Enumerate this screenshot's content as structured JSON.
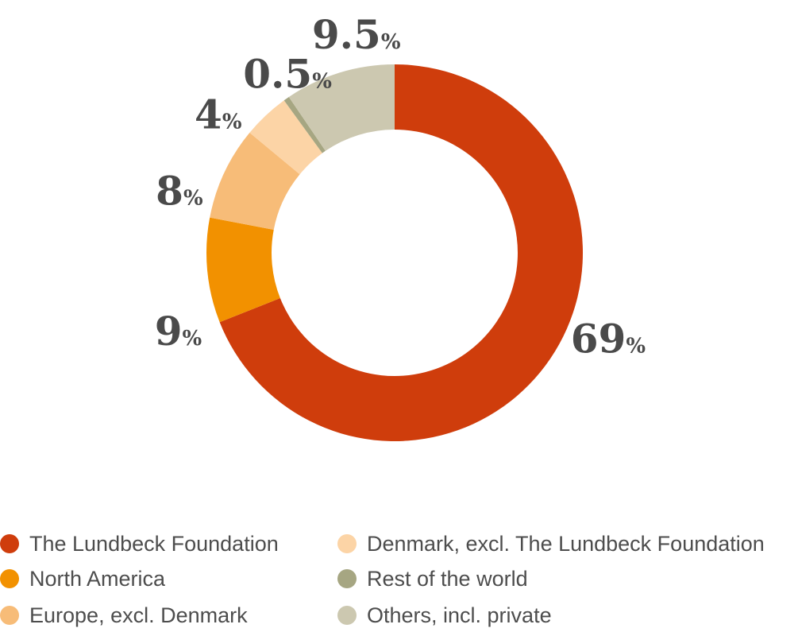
{
  "chart_data": {
    "type": "pie",
    "variant": "donut",
    "title": "",
    "categories": [
      "The Lundbeck Foundation",
      "North America",
      "Europe, excl. Denmark",
      "Denmark, excl. The Lundbeck Foundation",
      "Rest of the world",
      "Others, incl. private"
    ],
    "values": [
      69,
      9,
      8,
      4,
      0.5,
      9.5
    ],
    "value_labels": [
      "69",
      "9",
      "8",
      "4",
      "0.5",
      "9.5"
    ],
    "value_suffix": "%",
    "colors": [
      "#CF3D0C",
      "#F29100",
      "#F7BC78",
      "#FCD4A6",
      "#A6A682",
      "#CCC8B0"
    ],
    "legend_position": "bottom",
    "legend_columns": 2
  }
}
